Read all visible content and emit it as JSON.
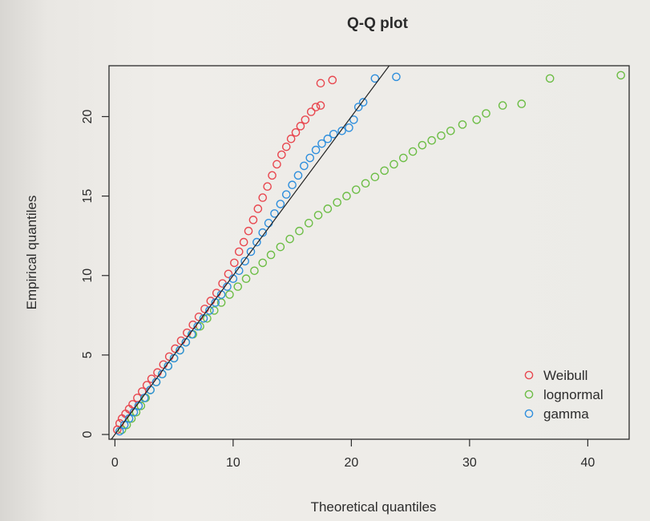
{
  "chart_data": {
    "type": "scatter",
    "title": "Q-Q plot",
    "xlabel": "Theoretical quantiles",
    "ylabel": "Empirical quantiles",
    "xlim": [
      -0.5,
      43.5
    ],
    "ylim": [
      -0.3,
      23.2
    ],
    "xticks": [
      0,
      10,
      20,
      30,
      40
    ],
    "yticks": [
      0,
      5,
      10,
      15,
      20
    ],
    "legend_position": "bottom-right",
    "reference_line": {
      "slope": 1,
      "intercept": 0,
      "color": "#222222"
    },
    "series": [
      {
        "name": "Weibull",
        "color": "#e8474f",
        "points": [
          [
            0.2,
            0.3
          ],
          [
            0.4,
            0.7
          ],
          [
            0.6,
            1.0
          ],
          [
            0.9,
            1.3
          ],
          [
            1.2,
            1.6
          ],
          [
            1.5,
            1.9
          ],
          [
            1.9,
            2.3
          ],
          [
            2.3,
            2.7
          ],
          [
            2.7,
            3.1
          ],
          [
            3.1,
            3.5
          ],
          [
            3.6,
            3.9
          ],
          [
            4.1,
            4.4
          ],
          [
            4.6,
            4.9
          ],
          [
            5.1,
            5.4
          ],
          [
            5.6,
            5.9
          ],
          [
            6.1,
            6.4
          ],
          [
            6.6,
            6.9
          ],
          [
            7.1,
            7.4
          ],
          [
            7.6,
            7.9
          ],
          [
            8.1,
            8.4
          ],
          [
            8.6,
            8.9
          ],
          [
            9.1,
            9.5
          ],
          [
            9.6,
            10.1
          ],
          [
            10.1,
            10.8
          ],
          [
            10.5,
            11.5
          ],
          [
            10.9,
            12.1
          ],
          [
            11.3,
            12.8
          ],
          [
            11.7,
            13.5
          ],
          [
            12.1,
            14.2
          ],
          [
            12.5,
            14.9
          ],
          [
            12.9,
            15.6
          ],
          [
            13.3,
            16.3
          ],
          [
            13.7,
            17.0
          ],
          [
            14.1,
            17.6
          ],
          [
            14.5,
            18.1
          ],
          [
            14.9,
            18.6
          ],
          [
            15.3,
            19.0
          ],
          [
            15.7,
            19.4
          ],
          [
            16.1,
            19.8
          ],
          [
            16.6,
            20.3
          ],
          [
            17.0,
            20.6
          ],
          [
            17.4,
            20.7
          ],
          [
            17.4,
            22.1
          ],
          [
            18.4,
            22.3
          ]
        ]
      },
      {
        "name": "lognormal",
        "color": "#6cbd45",
        "points": [
          [
            0.6,
            0.3
          ],
          [
            1.0,
            0.6
          ],
          [
            1.4,
            1.0
          ],
          [
            1.8,
            1.4
          ],
          [
            2.2,
            1.8
          ],
          [
            2.6,
            2.3
          ],
          [
            3.0,
            2.8
          ],
          [
            3.5,
            3.3
          ],
          [
            4.0,
            3.8
          ],
          [
            4.5,
            4.3
          ],
          [
            5.0,
            4.8
          ],
          [
            5.5,
            5.3
          ],
          [
            6.0,
            5.8
          ],
          [
            6.6,
            6.3
          ],
          [
            7.2,
            6.8
          ],
          [
            7.8,
            7.3
          ],
          [
            8.4,
            7.8
          ],
          [
            9.0,
            8.3
          ],
          [
            9.7,
            8.8
          ],
          [
            10.4,
            9.3
          ],
          [
            11.1,
            9.8
          ],
          [
            11.8,
            10.3
          ],
          [
            12.5,
            10.8
          ],
          [
            13.2,
            11.3
          ],
          [
            14.0,
            11.8
          ],
          [
            14.8,
            12.3
          ],
          [
            15.6,
            12.8
          ],
          [
            16.4,
            13.3
          ],
          [
            17.2,
            13.8
          ],
          [
            18.0,
            14.2
          ],
          [
            18.8,
            14.6
          ],
          [
            19.6,
            15.0
          ],
          [
            20.4,
            15.4
          ],
          [
            21.2,
            15.8
          ],
          [
            22.0,
            16.2
          ],
          [
            22.8,
            16.6
          ],
          [
            23.6,
            17.0
          ],
          [
            24.4,
            17.4
          ],
          [
            25.2,
            17.8
          ],
          [
            26.0,
            18.2
          ],
          [
            26.8,
            18.5
          ],
          [
            27.6,
            18.8
          ],
          [
            28.4,
            19.1
          ],
          [
            29.4,
            19.5
          ],
          [
            30.6,
            19.8
          ],
          [
            31.4,
            20.2
          ],
          [
            32.8,
            20.7
          ],
          [
            34.4,
            20.8
          ],
          [
            36.8,
            22.4
          ],
          [
            42.8,
            22.6
          ]
        ]
      },
      {
        "name": "gamma",
        "color": "#2f8fdd",
        "points": [
          [
            0.4,
            0.2
          ],
          [
            0.8,
            0.6
          ],
          [
            1.2,
            1.0
          ],
          [
            1.6,
            1.4
          ],
          [
            2.0,
            1.8
          ],
          [
            2.5,
            2.3
          ],
          [
            3.0,
            2.8
          ],
          [
            3.5,
            3.3
          ],
          [
            4.0,
            3.8
          ],
          [
            4.5,
            4.3
          ],
          [
            5.0,
            4.8
          ],
          [
            5.5,
            5.3
          ],
          [
            6.0,
            5.8
          ],
          [
            6.5,
            6.3
          ],
          [
            7.0,
            6.8
          ],
          [
            7.5,
            7.3
          ],
          [
            8.0,
            7.8
          ],
          [
            8.5,
            8.3
          ],
          [
            9.0,
            8.8
          ],
          [
            9.5,
            9.3
          ],
          [
            10.0,
            9.8
          ],
          [
            10.5,
            10.3
          ],
          [
            11.0,
            10.9
          ],
          [
            11.5,
            11.5
          ],
          [
            12.0,
            12.1
          ],
          [
            12.5,
            12.7
          ],
          [
            13.0,
            13.3
          ],
          [
            13.5,
            13.9
          ],
          [
            14.0,
            14.5
          ],
          [
            14.5,
            15.1
          ],
          [
            15.0,
            15.7
          ],
          [
            15.5,
            16.3
          ],
          [
            16.0,
            16.9
          ],
          [
            16.5,
            17.4
          ],
          [
            17.0,
            17.9
          ],
          [
            17.5,
            18.3
          ],
          [
            18.0,
            18.6
          ],
          [
            18.5,
            18.9
          ],
          [
            19.2,
            19.1
          ],
          [
            19.8,
            19.3
          ],
          [
            20.2,
            19.8
          ],
          [
            20.6,
            20.6
          ],
          [
            21.0,
            20.9
          ],
          [
            22.0,
            22.4
          ],
          [
            23.8,
            22.5
          ]
        ]
      }
    ]
  }
}
